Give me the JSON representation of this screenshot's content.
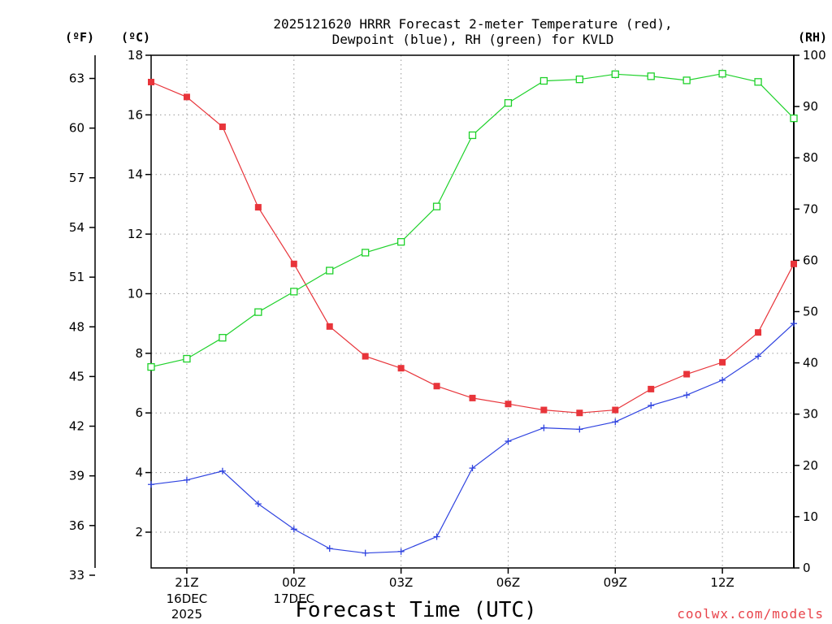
{
  "chart_data": {
    "type": "line",
    "title_line1": "2025121620 HRRR Forecast 2-meter Temperature (red),",
    "title_line2": "Dewpoint (blue), RH (green) for KVLD",
    "xlabel": "Forecast Time (UTC)",
    "credit": "coolwx.com/models",
    "units": {
      "fahrenheit": "(ºF)",
      "celsius": "(ºC)",
      "rh": "(RH)"
    },
    "x_ticks": [
      {
        "hour": 1,
        "label": "21Z",
        "date": "16DEC",
        "year": "2025"
      },
      {
        "hour": 4,
        "label": "00Z",
        "date": "17DEC",
        "year": ""
      },
      {
        "hour": 7,
        "label": "03Z",
        "date": "",
        "year": ""
      },
      {
        "hour": 10,
        "label": "06Z",
        "date": "",
        "year": ""
      },
      {
        "hour": 13,
        "label": "09Z",
        "date": "",
        "year": ""
      },
      {
        "hour": 16,
        "label": "12Z",
        "date": "",
        "year": ""
      }
    ],
    "x_range": [
      0,
      18
    ],
    "celsius_range": [
      0.8,
      18
    ],
    "celsius_ticks": [
      2,
      4,
      6,
      8,
      10,
      12,
      14,
      16,
      18
    ],
    "fahrenheit_ticks": [
      33,
      36,
      39,
      42,
      45,
      48,
      51,
      54,
      57,
      60,
      63
    ],
    "rh_range": [
      0,
      100
    ],
    "rh_ticks": [
      0,
      10,
      20,
      30,
      40,
      50,
      60,
      70,
      80,
      90,
      100
    ],
    "series": [
      {
        "name": "2-meter Temperature",
        "axis": "celsius",
        "color": "#e8343a",
        "marker": "filled-square",
        "x": [
          0,
          1,
          2,
          3,
          4,
          5,
          6,
          7,
          8,
          9,
          10,
          11,
          12,
          13,
          14,
          15,
          16,
          17,
          18
        ],
        "values": [
          17.1,
          16.6,
          15.6,
          12.9,
          11.0,
          8.9,
          7.9,
          7.5,
          6.9,
          6.5,
          6.3,
          6.1,
          6.0,
          6.1,
          6.8,
          7.3,
          7.7,
          8.7,
          11.0
        ]
      },
      {
        "name": "Dewpoint",
        "axis": "celsius",
        "color": "#2f43e0",
        "marker": "plus",
        "x": [
          0,
          1,
          2,
          3,
          4,
          5,
          6,
          7,
          8,
          9,
          10,
          11,
          12,
          13,
          14,
          15,
          16,
          17,
          18
        ],
        "values": [
          3.6,
          3.75,
          4.05,
          2.95,
          2.1,
          1.45,
          1.3,
          1.35,
          1.85,
          4.15,
          5.05,
          5.5,
          5.45,
          5.7,
          6.25,
          6.6,
          7.1,
          7.9,
          9.0
        ]
      },
      {
        "name": "RH",
        "axis": "rh",
        "color": "#1ed12a",
        "marker": "open-square",
        "x": [
          0,
          1,
          2,
          3,
          4,
          5,
          6,
          7,
          8,
          9,
          10,
          11,
          12,
          13,
          14,
          15,
          16,
          17,
          18
        ],
        "values": [
          39.2,
          40.8,
          44.9,
          49.9,
          53.9,
          58.0,
          61.5,
          63.6,
          70.5,
          84.4,
          90.7,
          95.0,
          95.3,
          96.3,
          95.9,
          95.1,
          96.4,
          94.8,
          87.7
        ]
      }
    ]
  }
}
